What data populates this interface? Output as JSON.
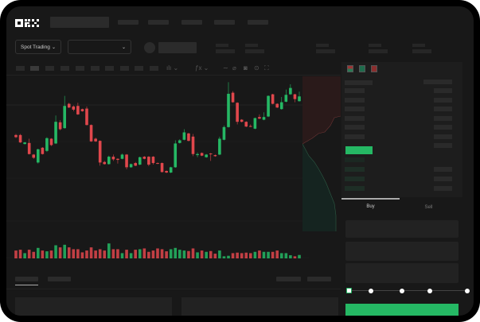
{
  "header": {
    "logo": "OKX"
  },
  "toolbar": {
    "market_selector": "Spot Trading",
    "pair_selector": ""
  },
  "trade": {
    "buy_tab": "Buy",
    "sell_tab": "Sell",
    "active_tab": "Buy",
    "amount_slider_percent": 0
  },
  "colors": {
    "up": "#25b864",
    "down": "#e0474c",
    "background": "#181818",
    "buy_button": "#25b864"
  },
  "chart_data": {
    "type": "candlestick",
    "candles": [
      [
        92,
        88,
        94,
        86
      ],
      [
        92,
        78,
        94,
        77
      ],
      [
        75,
        78,
        79,
        74
      ],
      [
        77,
        56,
        85,
        55
      ],
      [
        55,
        49,
        56,
        47
      ],
      [
        40,
        65,
        66,
        38
      ],
      [
        68,
        56,
        69,
        55
      ],
      [
        62,
        86,
        88,
        60
      ],
      [
        85,
        73,
        86,
        71
      ],
      [
        76,
        117,
        129,
        75
      ],
      [
        116,
        103,
        120,
        101
      ],
      [
        105,
        147,
        166,
        104
      ],
      [
        151,
        144,
        153,
        143
      ],
      [
        146,
        140,
        148,
        137
      ],
      [
        147,
        131,
        153,
        130
      ],
      [
        141,
        137,
        142,
        136
      ],
      [
        142,
        111,
        146,
        110
      ],
      [
        111,
        80,
        112,
        79
      ],
      [
        85,
        80,
        87,
        79
      ],
      [
        81,
        40,
        82,
        34
      ],
      [
        41,
        37,
        43,
        36
      ],
      [
        37,
        51,
        53,
        36
      ],
      [
        51,
        46,
        55,
        43
      ],
      [
        47,
        45,
        48,
        38
      ],
      [
        47,
        55,
        57,
        46
      ],
      [
        55,
        31,
        56,
        27
      ],
      [
        31,
        37,
        38,
        30
      ],
      [
        39,
        34,
        41,
        33
      ],
      [
        36,
        50,
        51,
        35
      ],
      [
        51,
        47,
        52,
        46
      ],
      [
        51,
        36,
        52,
        33
      ],
      [
        51,
        39,
        52,
        36
      ],
      [
        39,
        38,
        40,
        37
      ],
      [
        39,
        22,
        40,
        21
      ],
      [
        24,
        21,
        25,
        20
      ],
      [
        21,
        31,
        32,
        20
      ],
      [
        31,
        76,
        82,
        30
      ],
      [
        77,
        82,
        84,
        76
      ],
      [
        83,
        97,
        103,
        82
      ],
      [
        95,
        81,
        96,
        80
      ],
      [
        89,
        56,
        94,
        52
      ],
      [
        54,
        56,
        59,
        50
      ],
      [
        58,
        53,
        59,
        52
      ],
      [
        50,
        55,
        56,
        49
      ],
      [
        57,
        56,
        58,
        43
      ],
      [
        54,
        52,
        55,
        51
      ],
      [
        55,
        85,
        89,
        54
      ],
      [
        83,
        107,
        110,
        82
      ],
      [
        107,
        170,
        192,
        106
      ],
      [
        172,
        154,
        175,
        153
      ],
      [
        153,
        117,
        154,
        112
      ],
      [
        121,
        117,
        122,
        116
      ],
      [
        117,
        108,
        118,
        107
      ],
      [
        109,
        108,
        112,
        107
      ],
      [
        104,
        124,
        125,
        103
      ],
      [
        126,
        123,
        131,
        122
      ],
      [
        121,
        126,
        135,
        120
      ],
      [
        127,
        166,
        167,
        126
      ],
      [
        169,
        151,
        170,
        150
      ],
      [
        151,
        144,
        152,
        143
      ],
      [
        141,
        154,
        164,
        140
      ],
      [
        155,
        168,
        178,
        154
      ],
      [
        169,
        181,
        188,
        168
      ],
      [
        169,
        160,
        170,
        154
      ],
      [
        156,
        165,
        174,
        155
      ]
    ],
    "volume": [
      30,
      33,
      20,
      33,
      25,
      40,
      30,
      27,
      30,
      50,
      42,
      52,
      42,
      35,
      35,
      23,
      30,
      42,
      30,
      35,
      30,
      57,
      35,
      35,
      20,
      33,
      20,
      33,
      35,
      38,
      25,
      30,
      38,
      35,
      27,
      35,
      40,
      33,
      30,
      28,
      38,
      23,
      30,
      25,
      28,
      18,
      30,
      8,
      10,
      20,
      22,
      20,
      22,
      20,
      25,
      30,
      25,
      25,
      25,
      30,
      20,
      20,
      12,
      8,
      13
    ],
    "grid": true
  }
}
